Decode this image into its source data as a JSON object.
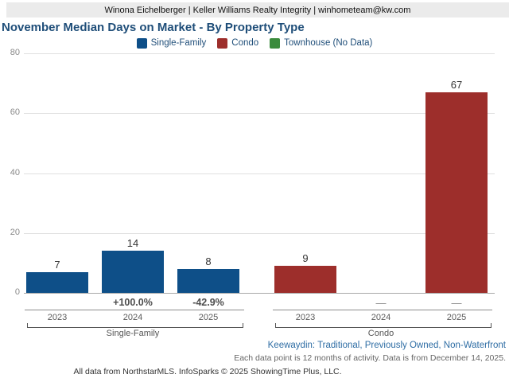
{
  "header": {
    "text": "Winona Eichelberger | Keller Williams Realty Integrity | winhometeam@kw.com"
  },
  "chart": {
    "title": "November Median Days on Market - By Property Type",
    "legend": [
      {
        "label": "Single-Family",
        "color": "#0e4f88"
      },
      {
        "label": "Condo",
        "color": "#9d2e2b"
      },
      {
        "label": "Townhouse (No Data)",
        "color": "#3b8b3c"
      }
    ]
  },
  "chart_data": {
    "type": "bar",
    "title": "November Median Days on Market - By Property Type",
    "ylabel": "",
    "xlabel": "",
    "ylim": [
      0,
      80
    ],
    "yticks": [
      0,
      20,
      40,
      60,
      80
    ],
    "grid": true,
    "legend_position": "top",
    "groups": [
      {
        "name": "Single-Family",
        "color": "#0e4f88",
        "categories": [
          "2023",
          "2024",
          "2025"
        ],
        "values": [
          7,
          14,
          8
        ],
        "pct_change": [
          null,
          "+100.0%",
          "-42.9%"
        ]
      },
      {
        "name": "Condo",
        "color": "#9d2e2b",
        "categories": [
          "2023",
          "2024",
          "2025"
        ],
        "values": [
          9,
          null,
          67
        ],
        "pct_change": [
          null,
          "—",
          "—"
        ]
      }
    ]
  },
  "footer": {
    "context": "Keewaydin: Traditional, Previously Owned, Non-Waterfront",
    "note": "Each data point is 12 months of activity. Data is from December 14, 2025.",
    "copyright": "All data from NorthstarMLS. InfoSparks © 2025 ShowingTime Plus, LLC."
  }
}
